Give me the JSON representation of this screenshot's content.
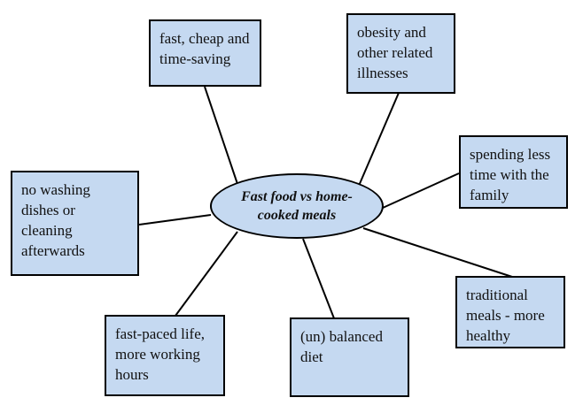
{
  "center": {
    "label": "Fast food vs home-cooked meals"
  },
  "nodes": [
    {
      "id": "fast-cheap",
      "text": "fast, cheap and time-saving"
    },
    {
      "id": "obesity",
      "text": "obesity and other related illnesses"
    },
    {
      "id": "family-time",
      "text": "spending less time with the family"
    },
    {
      "id": "no-washing",
      "text": "no washing dishes or cleaning afterwards"
    },
    {
      "id": "traditional",
      "text": "traditional meals - more healthy"
    },
    {
      "id": "fast-paced",
      "text": "fast-paced life, more working hours"
    },
    {
      "id": "balanced-diet",
      "text": "(un) balanced diet"
    }
  ],
  "colors": {
    "box_fill": "#c5d9f1",
    "border": "#000000"
  }
}
